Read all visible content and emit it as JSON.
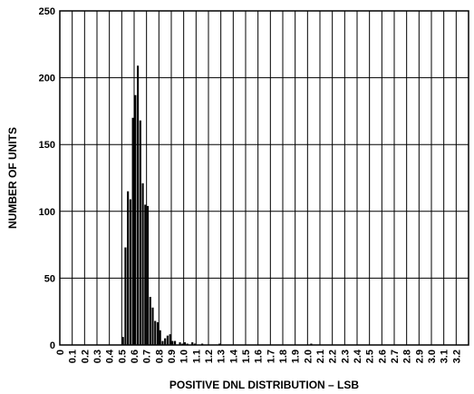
{
  "chart_data": {
    "type": "bar",
    "title": "",
    "xlabel": "POSITIVE DNL DISTRIBUTION – LSB",
    "ylabel": "NUMBER OF UNITS",
    "xlim": [
      0,
      3.3
    ],
    "ylim": [
      0,
      250
    ],
    "x_ticks": [
      0,
      0.1,
      0.2,
      0.3,
      0.4,
      0.5,
      0.6,
      0.7,
      0.8,
      0.9,
      1.0,
      1.1,
      1.2,
      1.3,
      1.4,
      1.5,
      1.6,
      1.7,
      1.8,
      1.9,
      2.0,
      2.1,
      2.2,
      2.3,
      2.4,
      2.5,
      2.6,
      2.7,
      2.8,
      2.9,
      3.0,
      3.1,
      3.2
    ],
    "x_tick_labels": [
      "0",
      "0.1",
      "0.2",
      "0.3",
      "0.4",
      "0.5",
      "0.6",
      "0.7",
      "0.8",
      "0.9",
      "1.0",
      "1.1",
      "1.2",
      "1.3",
      "1.4",
      "1.5",
      "1.6",
      "1.7",
      "1.8",
      "1.9",
      "2.0",
      "2.1",
      "2.2",
      "2.3",
      "2.4",
      "2.5",
      "2.6",
      "2.7",
      "2.8",
      "2.9",
      "3.0",
      "3.1",
      "3.2"
    ],
    "y_ticks": [
      0,
      50,
      100,
      150,
      200,
      250
    ],
    "y_tick_labels": [
      "0",
      "50",
      "100",
      "150",
      "200",
      "250"
    ],
    "grid": true,
    "bar_color": "#000000",
    "points": [
      {
        "x": 0.5,
        "y": 6
      },
      {
        "x": 0.52,
        "y": 73
      },
      {
        "x": 0.54,
        "y": 115
      },
      {
        "x": 0.56,
        "y": 109
      },
      {
        "x": 0.58,
        "y": 170
      },
      {
        "x": 0.6,
        "y": 187
      },
      {
        "x": 0.62,
        "y": 209
      },
      {
        "x": 0.64,
        "y": 168
      },
      {
        "x": 0.66,
        "y": 121
      },
      {
        "x": 0.68,
        "y": 105
      },
      {
        "x": 0.7,
        "y": 104
      },
      {
        "x": 0.72,
        "y": 36
      },
      {
        "x": 0.74,
        "y": 28
      },
      {
        "x": 0.76,
        "y": 18
      },
      {
        "x": 0.78,
        "y": 17
      },
      {
        "x": 0.8,
        "y": 11
      },
      {
        "x": 0.82,
        "y": 3
      },
      {
        "x": 0.84,
        "y": 5
      },
      {
        "x": 0.86,
        "y": 7
      },
      {
        "x": 0.88,
        "y": 8
      },
      {
        "x": 0.9,
        "y": 3
      },
      {
        "x": 0.92,
        "y": 3
      },
      {
        "x": 0.96,
        "y": 2
      },
      {
        "x": 0.98,
        "y": 1
      },
      {
        "x": 1.0,
        "y": 2
      },
      {
        "x": 1.02,
        "y": 1
      },
      {
        "x": 1.06,
        "y": 2
      },
      {
        "x": 1.08,
        "y": 1
      },
      {
        "x": 1.14,
        "y": 1
      },
      {
        "x": 1.28,
        "y": 1
      },
      {
        "x": 2.02,
        "y": 1
      }
    ]
  }
}
